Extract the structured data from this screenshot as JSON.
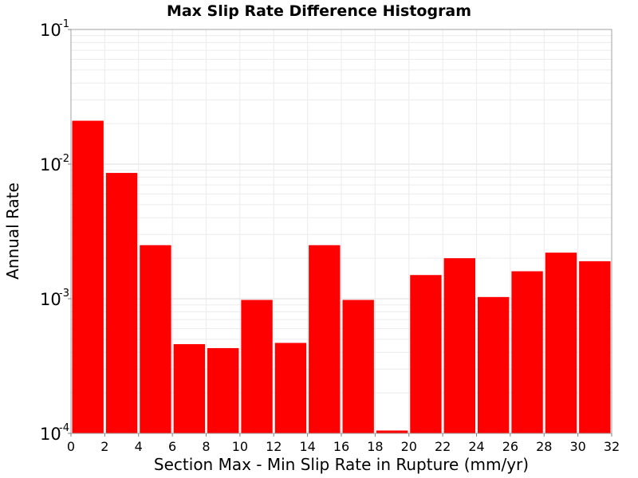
{
  "chart_data": {
    "type": "bar",
    "title": "Max Slip Rate Difference Histogram",
    "xlabel": "Section Max - Min Slip Rate in Rupture (mm/yr)",
    "ylabel": "Annual Rate",
    "xlim": [
      0,
      32
    ],
    "ylim": [
      0.0001,
      0.1
    ],
    "yscale": "log",
    "bin_width": 2,
    "x_ticks": [
      "0",
      "2",
      "4",
      "6",
      "8",
      "10",
      "12",
      "14",
      "16",
      "18",
      "20",
      "22",
      "24",
      "26",
      "28",
      "30",
      "32"
    ],
    "y_ticks": [
      {
        "base": "10",
        "exp": "-4",
        "value": 0.0001
      },
      {
        "base": "10",
        "exp": "-3",
        "value": 0.001
      },
      {
        "base": "10",
        "exp": "-2",
        "value": 0.01
      },
      {
        "base": "10",
        "exp": "-1",
        "value": 0.1
      }
    ],
    "bins": [
      {
        "x_start": 0,
        "x_end": 2,
        "value": 0.021
      },
      {
        "x_start": 2,
        "x_end": 4,
        "value": 0.0086
      },
      {
        "x_start": 4,
        "x_end": 6,
        "value": 0.0025
      },
      {
        "x_start": 6,
        "x_end": 8,
        "value": 0.00046
      },
      {
        "x_start": 8,
        "x_end": 10,
        "value": 0.00043
      },
      {
        "x_start": 10,
        "x_end": 12,
        "value": 0.00098
      },
      {
        "x_start": 12,
        "x_end": 14,
        "value": 0.00047
      },
      {
        "x_start": 14,
        "x_end": 16,
        "value": 0.0025
      },
      {
        "x_start": 16,
        "x_end": 18,
        "value": 0.00098
      },
      {
        "x_start": 18,
        "x_end": 20,
        "value": 0.000105
      },
      {
        "x_start": 20,
        "x_end": 22,
        "value": 0.0015
      },
      {
        "x_start": 22,
        "x_end": 24,
        "value": 0.002
      },
      {
        "x_start": 24,
        "x_end": 26,
        "value": 0.00103
      },
      {
        "x_start": 26,
        "x_end": 28,
        "value": 0.0016
      },
      {
        "x_start": 28,
        "x_end": 30,
        "value": 0.0022
      },
      {
        "x_start": 30,
        "x_end": 32,
        "value": 0.0019
      }
    ],
    "bar_color": "#ff0000",
    "grid": true,
    "legend": false
  }
}
